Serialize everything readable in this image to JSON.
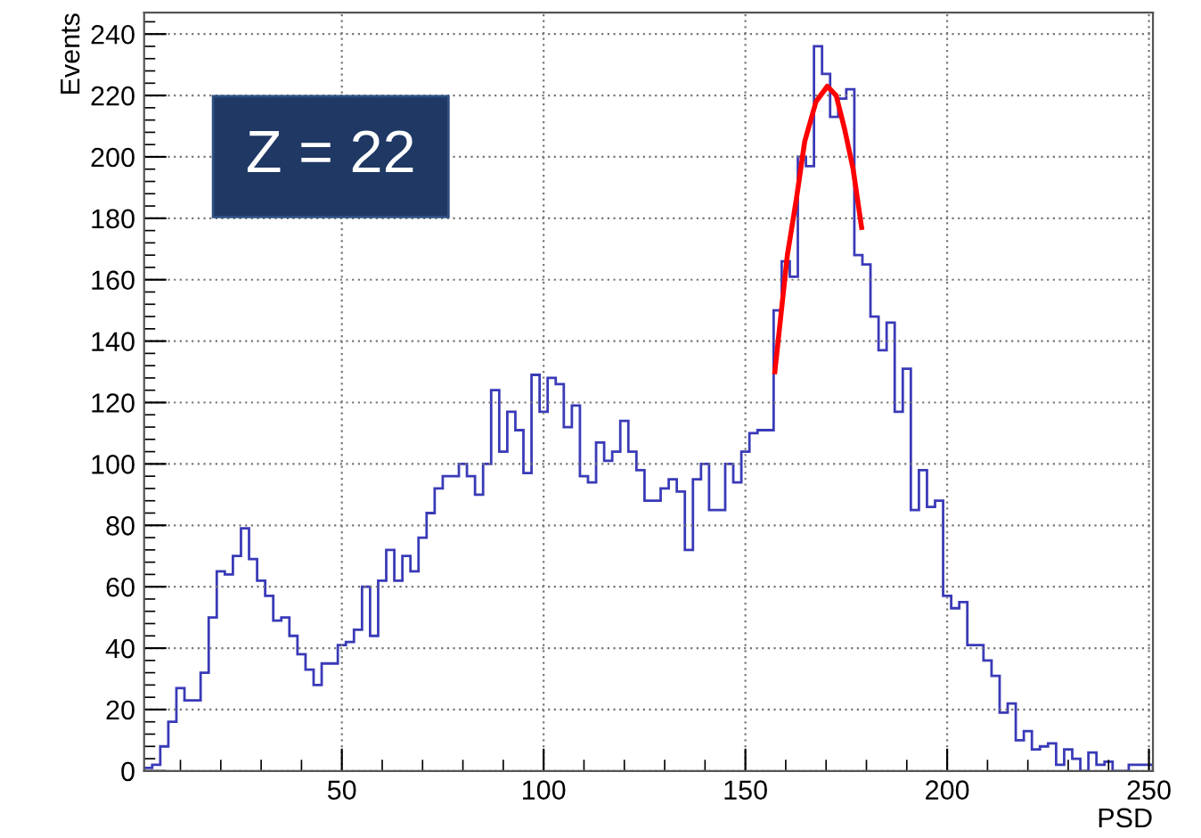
{
  "chart_data": {
    "type": "histogram",
    "xlabel": "PSD",
    "ylabel": "Events",
    "annotations": [
      "Z = 22"
    ],
    "bins": [
      1,
      3,
      5,
      7,
      9,
      11,
      13,
      15,
      17,
      19,
      21,
      23,
      25,
      27,
      29,
      31,
      33,
      35,
      37,
      39,
      41,
      43,
      45,
      47,
      49,
      51,
      53,
      55,
      57,
      59,
      61,
      63,
      65,
      67,
      69,
      71,
      73,
      75,
      77,
      79,
      81,
      83,
      85,
      87,
      89,
      91,
      93,
      95,
      97,
      99,
      101,
      103,
      105,
      107,
      109,
      111,
      113,
      115,
      117,
      119,
      121,
      123,
      125,
      127,
      129,
      131,
      133,
      135,
      137,
      139,
      141,
      143,
      145,
      147,
      149,
      151,
      153,
      155,
      157,
      159,
      161,
      163,
      165,
      167,
      169,
      171,
      173,
      175,
      177,
      179,
      181,
      183,
      185,
      187,
      189,
      191,
      193,
      195,
      197,
      199,
      201,
      203,
      205,
      207,
      209,
      211,
      213,
      215,
      217,
      219,
      221,
      223,
      225,
      227,
      229,
      231,
      233,
      235,
      237,
      239,
      241,
      243,
      245,
      247,
      249,
      251
    ],
    "series": [
      {
        "color": "#3a3ab8",
        "values": [
          1,
          2,
          8,
          16,
          27,
          23,
          23,
          32,
          50,
          65,
          64,
          70,
          79,
          69,
          62,
          57,
          49,
          50,
          44,
          38,
          33,
          28,
          35,
          35,
          41,
          42,
          46,
          60,
          44,
          62,
          72,
          62,
          70,
          65,
          76,
          84,
          92,
          96,
          96,
          100,
          96,
          90,
          100,
          124,
          104,
          117,
          111,
          97,
          129,
          117,
          128,
          126,
          112,
          119,
          96,
          94,
          107,
          101,
          104,
          114,
          104,
          98,
          88,
          88,
          92,
          95,
          91,
          72,
          95,
          100,
          85,
          85,
          100,
          94,
          104,
          110,
          111,
          111,
          150,
          166,
          161,
          200,
          197,
          236,
          227,
          213,
          219,
          222,
          168,
          165,
          148,
          137,
          146,
          117,
          131,
          85,
          98,
          86,
          88,
          57,
          53,
          55,
          41,
          41,
          36,
          31,
          19,
          22,
          10,
          13,
          7,
          8,
          9,
          2,
          7,
          4,
          0,
          6,
          2,
          3,
          0,
          0,
          2,
          2,
          2
        ]
      },
      {
        "type": "line",
        "color": "#ff0000",
        "x": [
          157.3,
          160.4,
          162.6,
          164.7,
          167.5,
          170.3,
          172.5,
          174.6,
          176.7,
          178.8
        ],
        "values": [
          130,
          168,
          186,
          205,
          218,
          223,
          220,
          209,
          196,
          177
        ]
      }
    ],
    "xlim": [
      1,
      251
    ],
    "ylim": [
      0,
      247
    ],
    "xticks": [
      50,
      100,
      150,
      200,
      250
    ],
    "yticks": [
      0,
      20,
      40,
      60,
      80,
      100,
      120,
      140,
      160,
      180,
      200,
      220,
      240
    ],
    "grid": true,
    "legend": false
  }
}
